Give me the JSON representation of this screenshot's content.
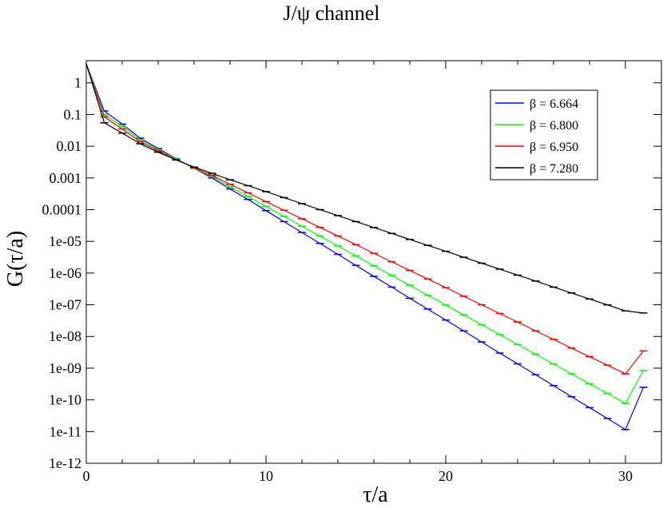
{
  "chart_data": {
    "type": "line",
    "title": "J/ψ  channel",
    "xlabel": "τ/a",
    "ylabel": "G(τ/a)",
    "xlim": [
      0,
      32
    ],
    "ylim": [
      1e-12,
      5
    ],
    "yscale": "log",
    "grid": false,
    "legend_position": "top-right",
    "x_ticks": [
      0,
      10,
      20,
      30
    ],
    "x_tick_labels": [
      "0",
      "10",
      "20",
      "30"
    ],
    "y_tick_labels": [
      "1",
      "0.1",
      "0.01",
      "0.001",
      "0.0001",
      "1e-05",
      "1e-06",
      "1e-07",
      "1e-08",
      "1e-09",
      "1e-10",
      "1e-11",
      "1e-12"
    ],
    "x": [
      0,
      1,
      2,
      3,
      4,
      5,
      6,
      7,
      8,
      9,
      10,
      11,
      12,
      13,
      14,
      15,
      16,
      17,
      18,
      19,
      20,
      21,
      22,
      23,
      24,
      25,
      26,
      27,
      28,
      29,
      30,
      31
    ],
    "series": [
      {
        "name": "β = 6.664",
        "color": "#0000ff",
        "values": [
          4.0,
          0.13,
          0.05,
          0.018,
          0.0085,
          0.0041,
          0.002,
          0.001,
          0.00045,
          0.00021,
          9.33e-05,
          4.2e-05,
          1.9e-05,
          8.6e-06,
          3.9e-06,
          1.75e-06,
          7.9e-07,
          3.6e-07,
          1.6e-07,
          7.3e-08,
          3.3e-08,
          1.5e-08,
          6.7e-09,
          3e-09,
          1.37e-09,
          6.2e-10,
          2.8e-10,
          1.26e-10,
          5.7e-11,
          2.6e-11,
          1.15e-11,
          2.5e-10
        ]
      },
      {
        "name": "β = 6.800",
        "color": "#00ff00",
        "values": [
          4.0,
          0.1,
          0.042,
          0.016,
          0.0078,
          0.004,
          0.002,
          0.0011,
          0.00053,
          0.00026,
          0.000127,
          6.2e-05,
          3e-05,
          1.47e-05,
          7.2e-06,
          3.5e-06,
          1.7e-06,
          8.4e-07,
          4.1e-07,
          2e-07,
          9.8e-08,
          4.8e-08,
          2.35e-08,
          1.15e-08,
          5.6e-09,
          2.75e-09,
          1.35e-09,
          6.6e-10,
          3.2e-10,
          1.6e-10,
          7.7e-11,
          8.5e-10
        ]
      },
      {
        "name": "β = 6.950",
        "color": "#ff0000",
        "values": [
          4.0,
          0.085,
          0.035,
          0.014,
          0.0072,
          0.0038,
          0.0021,
          0.0012,
          0.00063,
          0.00034,
          0.00018,
          9.65e-05,
          5.16e-05,
          2.76e-05,
          1.48e-05,
          7.9e-06,
          4.2e-06,
          2.27e-06,
          1.21e-06,
          6.5e-07,
          3.5e-07,
          1.86e-07,
          9.96e-08,
          5.3e-08,
          2.85e-08,
          1.5e-08,
          8.1e-09,
          4.3e-09,
          2.3e-09,
          1.24e-09,
          6.6e-10,
          3.5e-09
        ]
      },
      {
        "name": "β = 7.280",
        "color": "#000000",
        "values": [
          4.0,
          0.055,
          0.026,
          0.012,
          0.0065,
          0.0037,
          0.0022,
          0.0014,
          0.00088,
          0.00057,
          0.00037,
          0.00024,
          0.000155,
          0.0001,
          6.5e-05,
          4.2e-05,
          2.74e-05,
          1.78e-05,
          1.15e-05,
          7.5e-06,
          4.87e-06,
          3.16e-06,
          2.05e-06,
          1.33e-06,
          8.6e-07,
          5.6e-07,
          3.6e-07,
          2.35e-07,
          1.52e-07,
          9.9e-08,
          6.4e-08,
          5.5e-08
        ]
      }
    ]
  }
}
